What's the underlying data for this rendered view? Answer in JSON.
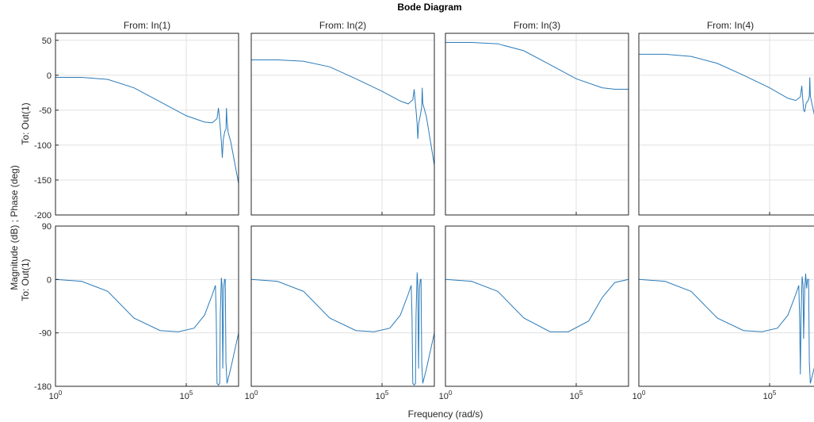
{
  "figure": {
    "title": "Bode Diagram",
    "xlabel": "Frequency  (rad/s)",
    "ylabel_outer": "Magnitude (dB) ; Phase (deg)",
    "row_labels": [
      "To: Out(1)",
      "To: Out(1)"
    ],
    "column_titles": [
      "From: In(1)",
      "From: In(2)",
      "From: In(3)",
      "From: In(4)"
    ],
    "colors": {
      "line": "#2b7bba",
      "grid": "#e1e1e1",
      "axis": "#262626",
      "text": "#262626"
    }
  },
  "chart_data": {
    "type": "line",
    "x_scale": "log",
    "xlim": [
      1,
      10000000
    ],
    "x_ticks": [
      1,
      100000
    ],
    "x_tick_labels": [
      "10^0",
      "10^5"
    ],
    "magnitude": {
      "ylabel": "Magnitude (dB)",
      "ylim": [
        -200,
        60
      ],
      "y_ticks": [
        50,
        0,
        -50,
        -100,
        -150,
        -200
      ],
      "grid": true
    },
    "phase": {
      "ylabel": "Phase (deg)",
      "ylim": [
        -180,
        90
      ],
      "y_ticks": [
        90,
        0,
        -90,
        -180
      ],
      "grid": true
    },
    "series": [
      {
        "input": "In(1)",
        "magnitude": [
          [
            1,
            -3
          ],
          [
            10,
            -3
          ],
          [
            100,
            -6
          ],
          [
            1000,
            -18
          ],
          [
            10000,
            -38
          ],
          [
            100000,
            -58
          ],
          [
            500000,
            -67
          ],
          [
            1000000,
            -68
          ],
          [
            1500000,
            -62
          ],
          [
            1700000,
            -47
          ],
          [
            1800000,
            -55
          ],
          [
            2000000,
            -75
          ],
          [
            2200000,
            -95
          ],
          [
            2400000,
            -118
          ],
          [
            2600000,
            -92
          ],
          [
            3000000,
            -80
          ],
          [
            3300000,
            -78
          ],
          [
            3450000,
            -47
          ],
          [
            3600000,
            -65
          ],
          [
            4000000,
            -82
          ],
          [
            5000000,
            -95
          ],
          [
            10000000,
            -155
          ]
        ],
        "phase": [
          [
            1,
            0
          ],
          [
            10,
            -3
          ],
          [
            100,
            -20
          ],
          [
            1000,
            -65
          ],
          [
            10000,
            -86
          ],
          [
            50000,
            -88
          ],
          [
            200000,
            -82
          ],
          [
            500000,
            -60
          ],
          [
            1000000,
            -25
          ],
          [
            1300000,
            -10
          ],
          [
            1400000,
            -60
          ],
          [
            1500000,
            -175
          ],
          [
            1700000,
            -178
          ],
          [
            1900000,
            -175
          ],
          [
            2000000,
            -60
          ],
          [
            2200000,
            3
          ],
          [
            2350000,
            -10
          ],
          [
            2500000,
            -150
          ],
          [
            2700000,
            -15
          ],
          [
            2900000,
            0
          ],
          [
            3100000,
            0
          ],
          [
            3300000,
            -140
          ],
          [
            3600000,
            -175
          ],
          [
            5000000,
            -150
          ],
          [
            10000000,
            -90
          ]
        ]
      },
      {
        "input": "In(2)",
        "magnitude": [
          [
            1,
            22
          ],
          [
            10,
            22
          ],
          [
            100,
            20
          ],
          [
            1000,
            12
          ],
          [
            10000,
            -5
          ],
          [
            100000,
            -23
          ],
          [
            500000,
            -37
          ],
          [
            1000000,
            -41
          ],
          [
            1500000,
            -35
          ],
          [
            1700000,
            -20
          ],
          [
            1800000,
            -32
          ],
          [
            2000000,
            -50
          ],
          [
            2200000,
            -70
          ],
          [
            2350000,
            -91
          ],
          [
            2500000,
            -70
          ],
          [
            3000000,
            -55
          ],
          [
            3300000,
            -45
          ],
          [
            3450000,
            -18
          ],
          [
            3600000,
            -40
          ],
          [
            5000000,
            -60
          ],
          [
            10000000,
            -129
          ]
        ],
        "phase": [
          [
            1,
            0
          ],
          [
            10,
            -3
          ],
          [
            100,
            -20
          ],
          [
            1000,
            -65
          ],
          [
            10000,
            -86
          ],
          [
            50000,
            -88
          ],
          [
            200000,
            -82
          ],
          [
            500000,
            -60
          ],
          [
            1000000,
            -25
          ],
          [
            1300000,
            -10
          ],
          [
            1400000,
            -60
          ],
          [
            1500000,
            -175
          ],
          [
            1700000,
            -178
          ],
          [
            1900000,
            -175
          ],
          [
            2000000,
            -60
          ],
          [
            2200000,
            12
          ],
          [
            2350000,
            -10
          ],
          [
            2500000,
            -150
          ],
          [
            2700000,
            -15
          ],
          [
            2900000,
            0
          ],
          [
            3100000,
            0
          ],
          [
            3300000,
            -140
          ],
          [
            3600000,
            -175
          ],
          [
            5000000,
            -150
          ],
          [
            10000000,
            -90
          ]
        ]
      },
      {
        "input": "In(3)",
        "magnitude": [
          [
            1,
            47
          ],
          [
            10,
            47
          ],
          [
            100,
            45
          ],
          [
            1000,
            35
          ],
          [
            10000,
            15
          ],
          [
            100000,
            -5
          ],
          [
            1000000,
            -18
          ],
          [
            3000000,
            -20
          ],
          [
            10000000,
            -20
          ]
        ],
        "phase": [
          [
            1,
            0
          ],
          [
            10,
            -3
          ],
          [
            100,
            -20
          ],
          [
            1000,
            -65
          ],
          [
            10000,
            -88
          ],
          [
            50000,
            -88
          ],
          [
            300000,
            -70
          ],
          [
            1000000,
            -30
          ],
          [
            3000000,
            -5
          ],
          [
            10000000,
            0
          ]
        ]
      },
      {
        "input": "In(4)",
        "magnitude": [
          [
            1,
            30
          ],
          [
            10,
            30
          ],
          [
            100,
            27
          ],
          [
            1000,
            17
          ],
          [
            10000,
            0
          ],
          [
            100000,
            -18
          ],
          [
            500000,
            -33
          ],
          [
            1000000,
            -36
          ],
          [
            1500000,
            -31
          ],
          [
            1700000,
            -15
          ],
          [
            1800000,
            -28
          ],
          [
            2000000,
            -50
          ],
          [
            2200000,
            -52
          ],
          [
            2500000,
            -40
          ],
          [
            3000000,
            -36
          ],
          [
            3300000,
            -30
          ],
          [
            3450000,
            -3
          ],
          [
            3600000,
            -30
          ],
          [
            5000000,
            -55
          ],
          [
            10000000,
            -107
          ]
        ],
        "phase": [
          [
            1,
            0
          ],
          [
            10,
            -3
          ],
          [
            100,
            -20
          ],
          [
            1000,
            -65
          ],
          [
            10000,
            -86
          ],
          [
            50000,
            -88
          ],
          [
            200000,
            -82
          ],
          [
            500000,
            -60
          ],
          [
            1000000,
            -25
          ],
          [
            1300000,
            -10
          ],
          [
            1400000,
            -60
          ],
          [
            1500000,
            -160
          ],
          [
            1600000,
            -60
          ],
          [
            1750000,
            5
          ],
          [
            1900000,
            -10
          ],
          [
            2000000,
            -100
          ],
          [
            2200000,
            -15
          ],
          [
            2400000,
            10
          ],
          [
            2600000,
            -15
          ],
          [
            2800000,
            0
          ],
          [
            3100000,
            0
          ],
          [
            3300000,
            -140
          ],
          [
            3600000,
            -175
          ],
          [
            5000000,
            -150
          ],
          [
            10000000,
            -90
          ]
        ]
      }
    ]
  }
}
